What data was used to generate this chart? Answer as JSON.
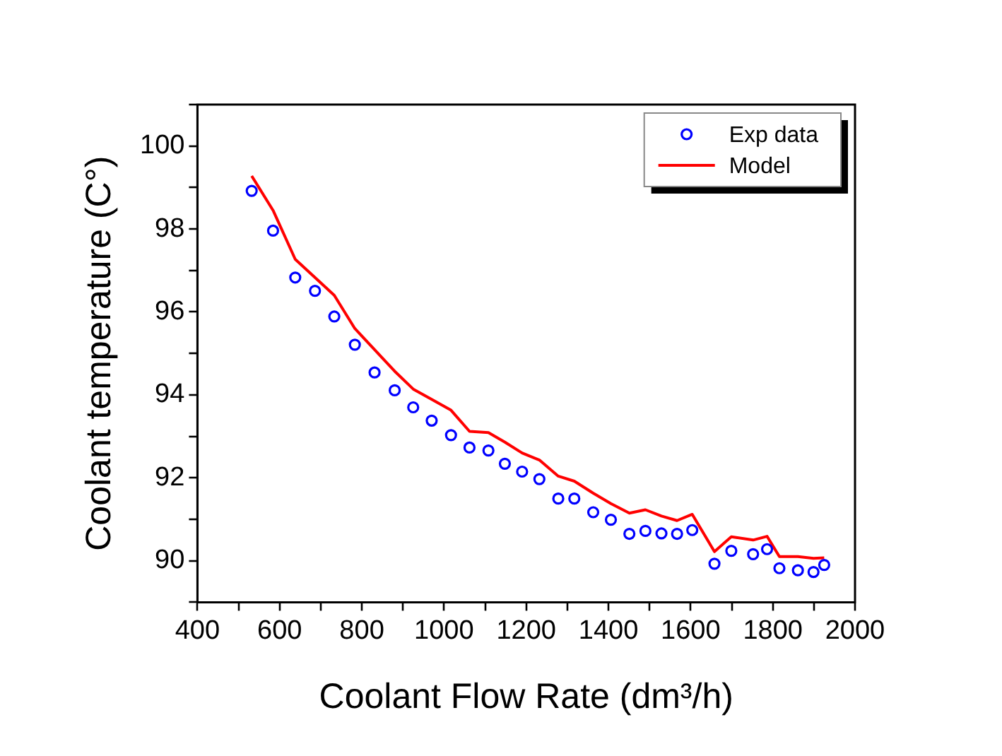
{
  "chart_data": {
    "type": "scatter",
    "xlabel": "Coolant Flow Rate (dm³/h)",
    "ylabel": "Coolant temperature (C°)",
    "xlim": [
      400,
      2000
    ],
    "xticks": [
      400,
      {
        "value": 500,
        "label": null
      },
      600,
      {
        "value": 700,
        "label": null
      },
      800,
      {
        "value": 900,
        "label": null
      },
      1000,
      {
        "value": 1100,
        "label": null
      },
      1200,
      {
        "value": 1300,
        "label": null
      },
      1400,
      {
        "value": 1500,
        "label": null
      },
      1600,
      {
        "value": 1700,
        "label": null
      },
      1800,
      {
        "value": 1900,
        "label": null
      },
      2000
    ],
    "ylim": [
      89,
      101
    ],
    "yticks": [
      {
        "value": 89,
        "label": null
      },
      90,
      {
        "value": 91,
        "label": null
      },
      92,
      {
        "value": 93,
        "label": null
      },
      94,
      {
        "value": 95,
        "label": null
      },
      96,
      {
        "value": 97,
        "label": null
      },
      98,
      {
        "value": 99,
        "label": null
      },
      100,
      {
        "value": 101,
        "label": null
      }
    ],
    "grid": false,
    "legend": "top right",
    "series": [
      {
        "name": "Exp data",
        "marker": "circle",
        "color": "#0000ff",
        "x": [
          532,
          584,
          638,
          686,
          733,
          783,
          831,
          880,
          925,
          970,
          1017,
          1062,
          1108,
          1148,
          1190,
          1232,
          1278,
          1317,
          1363,
          1406,
          1451,
          1490,
          1529,
          1567,
          1604,
          1658,
          1699,
          1752,
          1786,
          1816,
          1861,
          1899,
          1925
        ],
        "values": [
          98.92,
          97.96,
          96.83,
          96.51,
          95.89,
          95.21,
          94.54,
          94.11,
          93.7,
          93.38,
          93.03,
          92.73,
          92.66,
          92.34,
          92.15,
          91.97,
          91.5,
          91.5,
          91.17,
          90.99,
          90.65,
          90.72,
          90.66,
          90.65,
          90.74,
          89.93,
          90.24,
          90.16,
          90.28,
          89.82,
          89.77,
          89.73,
          89.9
        ]
      },
      {
        "name": "Model",
        "type": "line",
        "marker": "none",
        "color": "#ff0000",
        "x": [
          532,
          584,
          638,
          686,
          733,
          783,
          831,
          880,
          925,
          970,
          1017,
          1062,
          1108,
          1148,
          1190,
          1232,
          1278,
          1317,
          1363,
          1406,
          1451,
          1490,
          1529,
          1567,
          1604,
          1658,
          1699,
          1752,
          1786,
          1816,
          1861,
          1899,
          1925
        ],
        "values": [
          99.28,
          98.45,
          97.27,
          96.83,
          96.4,
          95.6,
          95.09,
          94.57,
          94.14,
          93.89,
          93.63,
          93.12,
          93.09,
          92.86,
          92.6,
          92.43,
          92.04,
          91.92,
          91.63,
          91.38,
          91.15,
          91.23,
          91.08,
          90.97,
          91.12,
          90.22,
          90.58,
          90.5,
          90.59,
          90.1,
          90.1,
          90.06,
          90.07
        ]
      }
    ]
  }
}
